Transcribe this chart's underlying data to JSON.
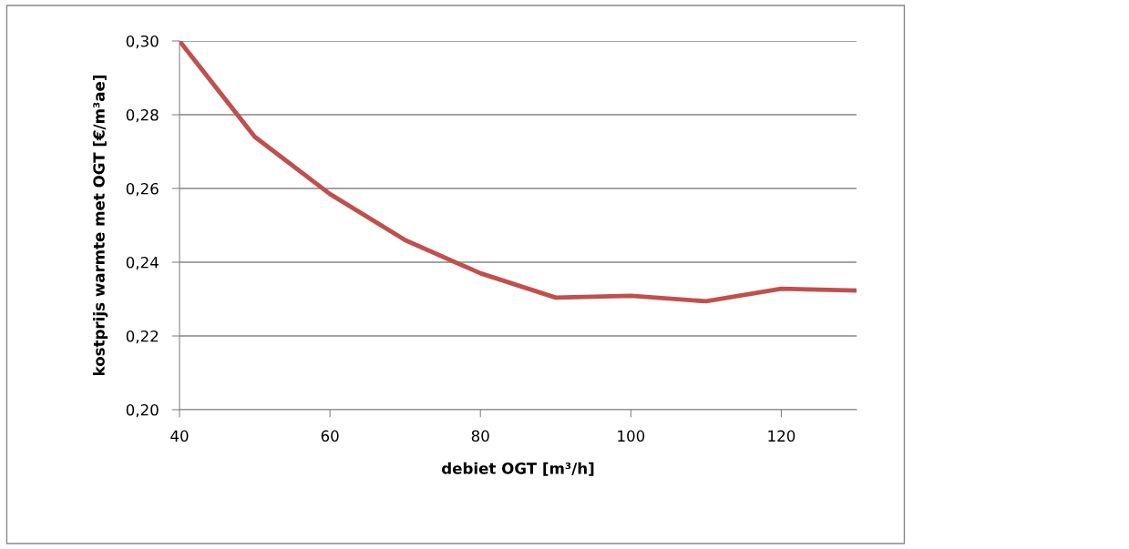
{
  "chart_data": {
    "type": "line",
    "xlabel": "debiet OGT [m³/h]",
    "ylabel": "kostprijs warmte met OGT [€/m³ae]",
    "x": [
      40,
      50,
      60,
      70,
      80,
      90,
      100,
      110,
      120,
      130
    ],
    "series": [
      {
        "color": "#c0504d",
        "values": [
          0.3,
          0.274,
          0.2585,
          0.246,
          0.237,
          0.2304,
          0.2309,
          0.2294,
          0.2328,
          0.2323
        ]
      }
    ],
    "xlim": [
      40,
      130
    ],
    "xticks": [
      40,
      60,
      80,
      100,
      120
    ],
    "ylim": [
      0.2,
      0.3
    ],
    "yticks": [
      {
        "value": 0.2,
        "label": "0,20"
      },
      {
        "value": 0.22,
        "label": "0,22"
      },
      {
        "value": 0.24,
        "label": "0,24"
      },
      {
        "value": 0.26,
        "label": "0,26"
      },
      {
        "value": 0.28,
        "label": "0,28"
      },
      {
        "value": 0.3,
        "label": "0,30"
      }
    ],
    "grid": "y",
    "marker": "none",
    "line_style": "solid"
  }
}
